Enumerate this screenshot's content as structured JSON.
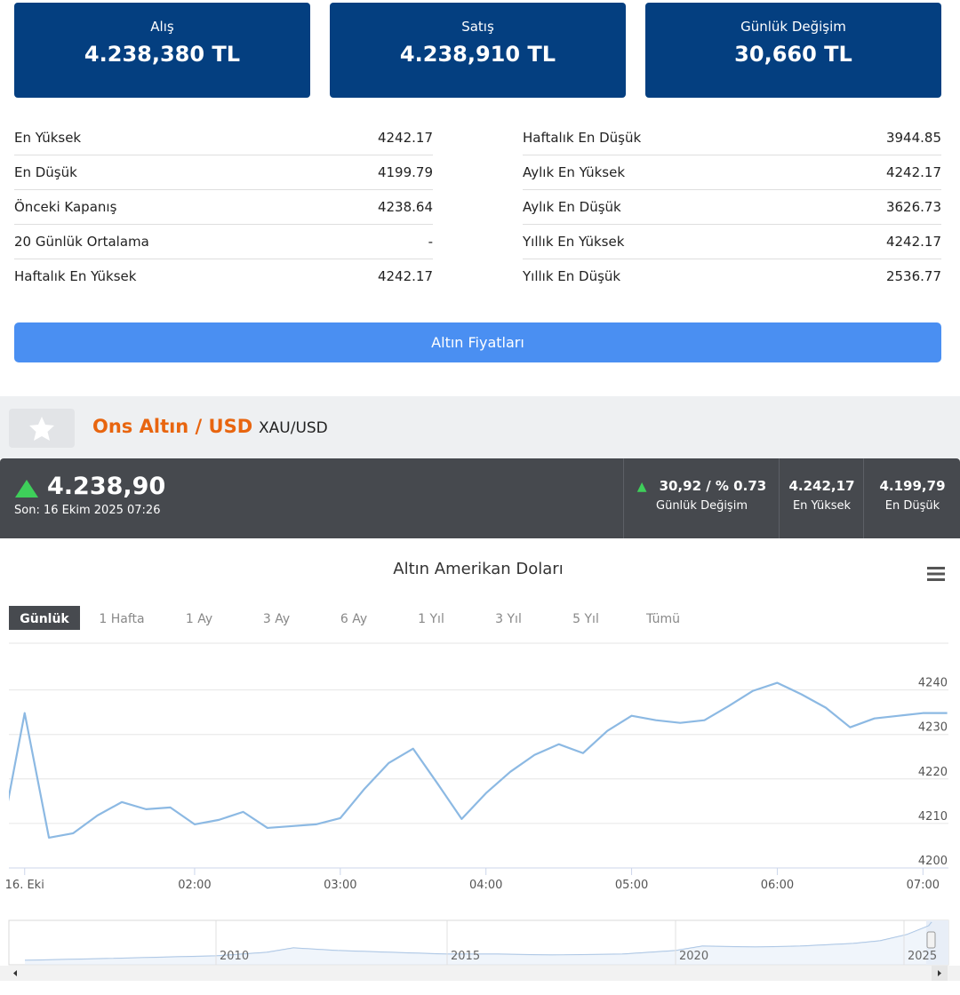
{
  "cards": [
    {
      "label": "Alış",
      "value": "4.238,380 TL"
    },
    {
      "label": "Satış",
      "value": "4.238,910 TL"
    },
    {
      "label": "Günlük Değişim",
      "value": "30,660 TL"
    }
  ],
  "stats": {
    "left": [
      {
        "label": "En Yüksek",
        "value": "4242.17"
      },
      {
        "label": "En Düşük",
        "value": "4199.79"
      },
      {
        "label": "Önceki Kapanış",
        "value": "4238.64"
      },
      {
        "label": "20 Günlük Ortalama",
        "value": "-"
      },
      {
        "label": "Haftalık En Yüksek",
        "value": "4242.17"
      }
    ],
    "right": [
      {
        "label": "Haftalık En Düşük",
        "value": "3944.85"
      },
      {
        "label": "Aylık En Yüksek",
        "value": "4242.17"
      },
      {
        "label": "Aylık En Düşük",
        "value": "3626.73"
      },
      {
        "label": "Yıllık En Yüksek",
        "value": "4242.17"
      },
      {
        "label": "Yıllık En Düşük",
        "value": "2536.77"
      }
    ]
  },
  "button": "Altın Fiyatları",
  "instrument": {
    "name": "Ons Altın / USD",
    "symbol": "XAU/USD"
  },
  "ticker": {
    "price": "4.238,90",
    "updated": "Son: 16 Ekim 2025 07:26",
    "change": "30,92 / % 0.73",
    "change_label": "Günlük Değişim",
    "high": "4.242,17",
    "high_label": "En Yüksek",
    "low": "4.199,79",
    "low_label": "En Düşük"
  },
  "ranges": [
    "Günlük",
    "1 Hafta",
    "1 Ay",
    "3 Ay",
    "6 Ay",
    "1 Yıl",
    "3 Yıl",
    "5 Yıl",
    "Tümü"
  ],
  "selected_range": 0,
  "chart_data": {
    "type": "line",
    "title": "Altın Amerikan Doları",
    "color": "#8cb9e3",
    "x": [
      40,
      50,
      60,
      70,
      80,
      90,
      100,
      110,
      120,
      130,
      140,
      150,
      160,
      170,
      180,
      190,
      200,
      210,
      220,
      230,
      240,
      250,
      260,
      270,
      280,
      290,
      300,
      310,
      320,
      330,
      340,
      350,
      360,
      370,
      380,
      390,
      400,
      410,
      420,
      430
    ],
    "values": [
      4206,
      4234.8,
      4206.8,
      4207.8,
      4211.8,
      4214.8,
      4213.2,
      4213.6,
      4209.8,
      4210.8,
      4212.6,
      4209,
      4209.4,
      4209.8,
      4211.2,
      4217.8,
      4223.6,
      4226.8,
      4219,
      4211,
      4216.8,
      4221.6,
      4225.4,
      4227.8,
      4225.8,
      4230.8,
      4234.2,
      4233.2,
      4232.6,
      4233.2,
      4236.4,
      4239.8,
      4241.6,
      4239,
      4236,
      4231.6,
      4233.6,
      4234.2,
      4234.8,
      4234.8
    ],
    "xlim": [
      43.5,
      430.5
    ],
    "xticks": [
      {
        "value": 50,
        "label": "16. Eki"
      },
      {
        "value": 120,
        "label": "02:00"
      },
      {
        "value": 180,
        "label": "03:00"
      },
      {
        "value": 240,
        "label": "04:00"
      },
      {
        "value": 300,
        "label": "05:00"
      },
      {
        "value": 360,
        "label": "06:00"
      },
      {
        "value": 420,
        "label": "07:00"
      }
    ],
    "ylim": [
      4200,
      4250.5
    ],
    "yticks": [
      4200,
      4210,
      4220,
      4230,
      4240
    ],
    "grid": true
  },
  "navigator": {
    "labels": [
      "2010",
      "2015",
      "2020",
      "2025"
    ]
  }
}
